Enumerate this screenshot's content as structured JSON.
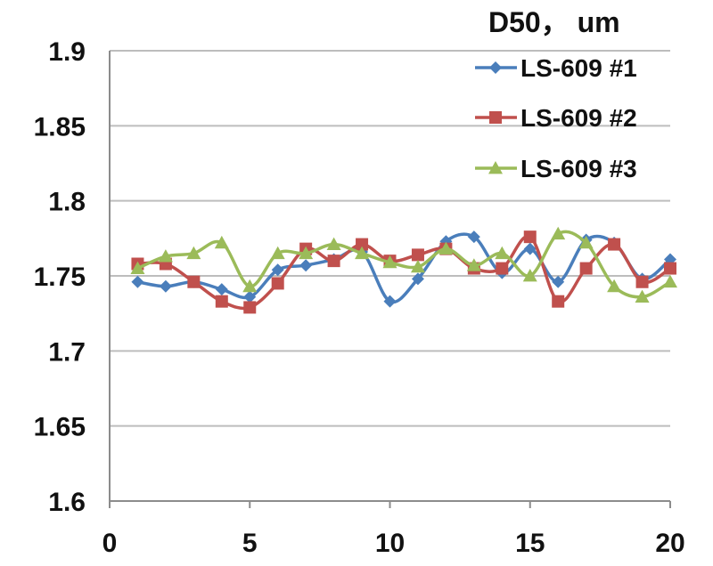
{
  "chart_data": {
    "type": "line",
    "title": "D50， um",
    "xlabel": "",
    "ylabel": "",
    "xlim": [
      0,
      20
    ],
    "ylim": [
      1.6,
      1.9
    ],
    "x_ticks": [
      "0",
      "5",
      "10",
      "15",
      "20"
    ],
    "y_ticks": [
      "1.6",
      "1.65",
      "1.7",
      "1.75",
      "1.8",
      "1.85",
      "1.9"
    ],
    "grid": "horizontal",
    "legend_position": "top-right",
    "x": [
      1,
      2,
      3,
      4,
      5,
      6,
      7,
      8,
      9,
      10,
      11,
      12,
      13,
      14,
      15,
      16,
      17,
      18,
      19,
      20
    ],
    "series": [
      {
        "name": "LS-609 #1",
        "color": "#4a7ebb",
        "marker": "diamond",
        "values": [
          1.746,
          1.743,
          1.746,
          1.741,
          1.736,
          1.754,
          1.757,
          1.761,
          1.766,
          1.733,
          1.748,
          1.773,
          1.776,
          1.752,
          1.768,
          1.746,
          1.774,
          1.772,
          1.748,
          1.761
        ]
      },
      {
        "name": "LS-609 #2",
        "color": "#c0504d",
        "marker": "square",
        "values": [
          1.758,
          1.758,
          1.746,
          1.733,
          1.729,
          1.745,
          1.768,
          1.76,
          1.771,
          1.76,
          1.764,
          1.768,
          1.755,
          1.755,
          1.776,
          1.733,
          1.755,
          1.771,
          1.746,
          1.755
        ]
      },
      {
        "name": "LS-609 #3",
        "color": "#9bbb59",
        "marker": "triangle",
        "values": [
          1.755,
          1.763,
          1.765,
          1.772,
          1.743,
          1.765,
          1.765,
          1.771,
          1.765,
          1.759,
          1.756,
          1.768,
          1.757,
          1.765,
          1.75,
          1.778,
          1.772,
          1.743,
          1.736,
          1.746
        ]
      }
    ]
  }
}
